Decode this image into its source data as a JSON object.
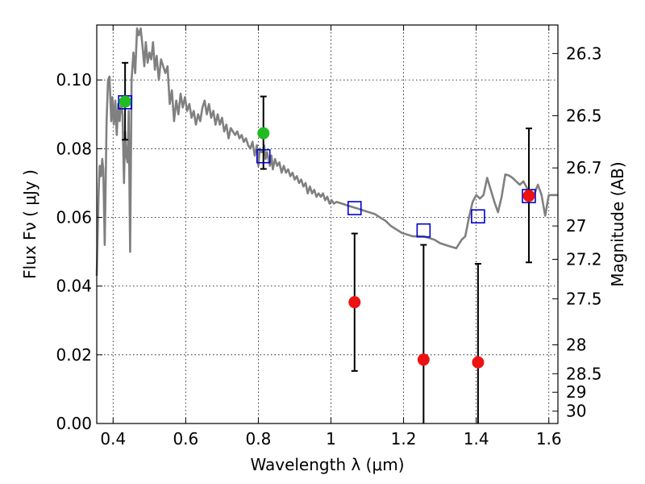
{
  "chart_data": {
    "type": "scatter",
    "xlabel": "Wavelength  λ (μm)",
    "ylabel": "Flux  Fν  ( μJy )",
    "ylabel_right": "Magnitude (AB)",
    "xlim": [
      0.355,
      1.625
    ],
    "ylim": [
      0.0,
      0.116
    ],
    "grid": true,
    "x_ticks": [
      {
        "value": 0.4,
        "label": "0.4"
      },
      {
        "value": 0.6,
        "label": "0.6"
      },
      {
        "value": 0.8,
        "label": "0.8"
      },
      {
        "value": 1.0,
        "label": "1"
      },
      {
        "value": 1.2,
        "label": "1.2"
      },
      {
        "value": 1.4,
        "label": "1.4"
      },
      {
        "value": 1.6,
        "label": "1.6"
      }
    ],
    "y_ticks": [
      {
        "value": 0.0,
        "label": "0.00"
      },
      {
        "value": 0.02,
        "label": "0.02"
      },
      {
        "value": 0.04,
        "label": "0.04"
      },
      {
        "value": 0.06,
        "label": "0.06"
      },
      {
        "value": 0.08,
        "label": "0.08"
      },
      {
        "value": 0.1,
        "label": "0.10"
      }
    ],
    "right_ticks": [
      {
        "flux": 0.1077,
        "label": "26.3"
      },
      {
        "flux": 0.0896,
        "label": "26.5"
      },
      {
        "flux": 0.0744,
        "label": "26.7"
      },
      {
        "flux": 0.0575,
        "label": "27"
      },
      {
        "flux": 0.0478,
        "label": "27.2"
      },
      {
        "flux": 0.0363,
        "label": "27.5"
      },
      {
        "flux": 0.0229,
        "label": "28"
      },
      {
        "flux": 0.0145,
        "label": "28.5"
      },
      {
        "flux": 0.0091,
        "label": "29"
      },
      {
        "flux": 0.0036,
        "label": "30"
      }
    ],
    "series": [
      {
        "kind": "line",
        "color": "#808080",
        "points": [
          [
            0.355,
            0.043
          ],
          [
            0.36,
            0.067
          ],
          [
            0.363,
            0.075
          ],
          [
            0.367,
            0.072
          ],
          [
            0.37,
            0.077
          ],
          [
            0.373,
            0.074
          ],
          [
            0.377,
            0.052
          ],
          [
            0.382,
            0.088
          ],
          [
            0.386,
            0.1
          ],
          [
            0.39,
            0.101
          ],
          [
            0.395,
            0.088
          ],
          [
            0.398,
            0.095
          ],
          [
            0.402,
            0.087
          ],
          [
            0.406,
            0.094
          ],
          [
            0.41,
            0.084
          ],
          [
            0.414,
            0.093
          ],
          [
            0.418,
            0.088
          ],
          [
            0.422,
            0.094
          ],
          [
            0.426,
            0.09
          ],
          [
            0.43,
            0.07
          ],
          [
            0.433,
            0.085
          ],
          [
            0.436,
            0.078
          ],
          [
            0.44,
            0.076
          ],
          [
            0.443,
            0.091
          ],
          [
            0.447,
            0.05
          ],
          [
            0.451,
            0.1
          ],
          [
            0.456,
            0.108
          ],
          [
            0.461,
            0.102
          ],
          [
            0.466,
            0.115
          ],
          [
            0.471,
            0.113
          ],
          [
            0.476,
            0.115
          ],
          [
            0.481,
            0.11
          ],
          [
            0.486,
            0.104
          ],
          [
            0.49,
            0.111
          ],
          [
            0.495,
            0.105
          ],
          [
            0.5,
            0.108
          ],
          [
            0.505,
            0.106
          ],
          [
            0.51,
            0.111
          ],
          [
            0.515,
            0.103
          ],
          [
            0.52,
            0.107
          ],
          [
            0.526,
            0.1
          ],
          [
            0.532,
            0.106
          ],
          [
            0.538,
            0.104
          ],
          [
            0.544,
            0.102
          ],
          [
            0.55,
            0.104
          ],
          [
            0.556,
            0.093
          ],
          [
            0.562,
            0.097
          ],
          [
            0.568,
            0.088
          ],
          [
            0.574,
            0.094
          ],
          [
            0.58,
            0.09
          ],
          [
            0.586,
            0.096
          ],
          [
            0.592,
            0.092
          ],
          [
            0.598,
            0.095
          ],
          [
            0.604,
            0.091
          ],
          [
            0.61,
            0.093
          ],
          [
            0.616,
            0.089
          ],
          [
            0.622,
            0.091
          ],
          [
            0.628,
            0.087
          ],
          [
            0.634,
            0.09
          ],
          [
            0.64,
            0.088
          ],
          [
            0.646,
            0.092
          ],
          [
            0.652,
            0.094
          ],
          [
            0.658,
            0.09
          ],
          [
            0.664,
            0.093
          ],
          [
            0.67,
            0.089
          ],
          [
            0.676,
            0.091
          ],
          [
            0.682,
            0.087
          ],
          [
            0.688,
            0.09
          ],
          [
            0.694,
            0.087
          ],
          [
            0.7,
            0.089
          ],
          [
            0.706,
            0.085
          ],
          [
            0.712,
            0.087
          ],
          [
            0.718,
            0.083
          ],
          [
            0.724,
            0.086
          ],
          [
            0.73,
            0.085
          ],
          [
            0.736,
            0.084
          ],
          [
            0.742,
            0.085
          ],
          [
            0.748,
            0.083
          ],
          [
            0.754,
            0.084
          ],
          [
            0.76,
            0.082
          ],
          [
            0.766,
            0.083
          ],
          [
            0.772,
            0.081
          ],
          [
            0.778,
            0.08
          ],
          [
            0.784,
            0.082
          ],
          [
            0.79,
            0.078
          ],
          [
            0.796,
            0.081
          ],
          [
            0.8,
            0.075
          ],
          [
            0.804,
            0.08
          ],
          [
            0.808,
            0.079
          ],
          [
            0.812,
            0.079
          ],
          [
            0.816,
            0.081
          ],
          [
            0.82,
            0.077
          ],
          [
            0.824,
            0.079
          ],
          [
            0.828,
            0.077
          ],
          [
            0.832,
            0.075
          ],
          [
            0.836,
            0.078
          ],
          [
            0.84,
            0.074
          ],
          [
            0.846,
            0.077
          ],
          [
            0.852,
            0.075
          ],
          [
            0.858,
            0.076
          ],
          [
            0.864,
            0.073
          ],
          [
            0.87,
            0.075
          ],
          [
            0.876,
            0.073
          ],
          [
            0.882,
            0.074
          ],
          [
            0.888,
            0.072
          ],
          [
            0.894,
            0.073
          ],
          [
            0.9,
            0.071
          ],
          [
            0.906,
            0.072
          ],
          [
            0.912,
            0.07
          ],
          [
            0.918,
            0.071
          ],
          [
            0.924,
            0.069
          ],
          [
            0.93,
            0.07
          ],
          [
            0.936,
            0.067
          ],
          [
            0.942,
            0.069
          ],
          [
            0.948,
            0.067
          ],
          [
            0.954,
            0.068
          ],
          [
            0.96,
            0.066
          ],
          [
            0.966,
            0.067
          ],
          [
            0.972,
            0.066
          ],
          [
            0.978,
            0.067
          ],
          [
            0.984,
            0.065
          ],
          [
            0.99,
            0.066
          ],
          [
            0.996,
            0.064
          ],
          [
            1.002,
            0.065
          ],
          [
            1.008,
            0.064
          ],
          [
            1.015,
            0.0645
          ],
          [
            1.03,
            0.064
          ],
          [
            1.045,
            0.0635
          ],
          [
            1.06,
            0.063
          ],
          [
            1.075,
            0.0625
          ],
          [
            1.09,
            0.062
          ],
          [
            1.105,
            0.0615
          ],
          [
            1.12,
            0.061
          ],
          [
            1.135,
            0.06
          ],
          [
            1.15,
            0.059
          ],
          [
            1.165,
            0.0575
          ],
          [
            1.18,
            0.0565
          ],
          [
            1.195,
            0.0555
          ],
          [
            1.21,
            0.055
          ],
          [
            1.225,
            0.0545
          ],
          [
            1.24,
            0.0545
          ],
          [
            1.255,
            0.0545
          ],
          [
            1.27,
            0.054
          ],
          [
            1.285,
            0.0535
          ],
          [
            1.3,
            0.0525
          ],
          [
            1.315,
            0.052
          ],
          [
            1.33,
            0.0515
          ],
          [
            1.345,
            0.051
          ],
          [
            1.36,
            0.0535
          ],
          [
            1.37,
            0.0545
          ],
          [
            1.38,
            0.06
          ],
          [
            1.39,
            0.0645
          ],
          [
            1.4,
            0.0665
          ],
          [
            1.41,
            0.0655
          ],
          [
            1.42,
            0.0665
          ],
          [
            1.43,
            0.0715
          ],
          [
            1.44,
            0.068
          ],
          [
            1.45,
            0.0645
          ],
          [
            1.46,
            0.0615
          ],
          [
            1.47,
            0.066
          ],
          [
            1.48,
            0.0725
          ],
          [
            1.49,
            0.0722
          ],
          [
            1.5,
            0.0715
          ],
          [
            1.51,
            0.0705
          ],
          [
            1.52,
            0.0695
          ],
          [
            1.53,
            0.0705
          ],
          [
            1.54,
            0.0685
          ],
          [
            1.55,
            0.0675
          ],
          [
            1.56,
            0.0668
          ],
          [
            1.57,
            0.0695
          ],
          [
            1.58,
            0.0665
          ],
          [
            1.59,
            0.0605
          ],
          [
            1.6,
            0.0665
          ],
          [
            1.61,
            0.0665
          ],
          [
            1.625,
            0.0665
          ]
        ]
      },
      {
        "kind": "model_boxes",
        "marker": "open-square",
        "color": "#0000cc",
        "points": [
          {
            "x": 0.433,
            "y": 0.0935
          },
          {
            "x": 0.814,
            "y": 0.0778
          },
          {
            "x": 1.065,
            "y": 0.0627
          },
          {
            "x": 1.255,
            "y": 0.0562
          },
          {
            "x": 1.405,
            "y": 0.0603
          },
          {
            "x": 1.545,
            "y": 0.0662
          }
        ]
      },
      {
        "kind": "detections",
        "marker": "filled-circle",
        "color": "#22bb22",
        "points": [
          {
            "x": 0.433,
            "y": 0.0937,
            "err_low": 0.0826,
            "err_high": 0.105
          },
          {
            "x": 0.814,
            "y": 0.0845,
            "err_low": 0.0741,
            "err_high": 0.0952
          }
        ]
      },
      {
        "kind": "detections",
        "marker": "filled-circle",
        "color": "#ee1111",
        "points": [
          {
            "x": 1.065,
            "y": 0.0353,
            "err_low": 0.0153,
            "err_high": 0.0553
          },
          {
            "x": 1.255,
            "y": 0.0186,
            "err_low": 0.0,
            "err_high": 0.052
          },
          {
            "x": 1.405,
            "y": 0.0178,
            "err_low": 0.0,
            "err_high": 0.0465
          },
          {
            "x": 1.545,
            "y": 0.0663,
            "err_low": 0.0469,
            "err_high": 0.0859
          }
        ]
      }
    ]
  }
}
